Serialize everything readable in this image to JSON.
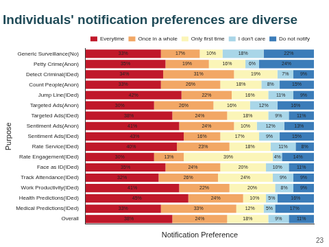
{
  "page_number": "23",
  "chart_data": {
    "type": "bar",
    "title": "Individuals' notification preferences are diverse",
    "orientation": "horizontal",
    "stacked": true,
    "grid": false,
    "legend": "top",
    "data_labels": true,
    "tick_labels": "y",
    "x_label": "Notification Preference",
    "y_label": "Purpose",
    "xlim": [
      0,
      100
    ],
    "categories": [
      "Generic Surveillance(No)",
      "Petty Crime(Anon)",
      "Detect Criminal(IDed)",
      "Count People(Anon)",
      "Jump Line(IDed)",
      "Targeted Ads(Anon)",
      "Targeted Ads(IDed)",
      "Sentiment Ads(Anon)",
      "Sentiment Ads(IDed)",
      "Rate Service(IDed)",
      "Rate Engagement(IDed)",
      "Face as ID(IDed)",
      "Track Attendance(IDed)",
      "Work Productivity(IDed)",
      "Health Predictions(IDed)",
      "Medical Predictions(IDed)",
      "Overall"
    ],
    "series": [
      {
        "name": "Everytime",
        "color": "#c0182a",
        "values": [
          33,
          35,
          34,
          33,
          42,
          30,
          38,
          41,
          43,
          40,
          30,
          35,
          32,
          41,
          45,
          33,
          38
        ],
        "value_labels": [
          "33%",
          "35%",
          "34%",
          "33%",
          "42%",
          "30%",
          "38%",
          "41%",
          "43%",
          "40%",
          "30%",
          "35%",
          "32%",
          "41%",
          "45%",
          "33%",
          "38%"
        ]
      },
      {
        "name": "Once in a whole",
        "color": "#f2a765",
        "values": [
          17,
          19,
          31,
          26,
          22,
          26,
          24,
          24,
          16,
          23,
          13,
          24,
          26,
          22,
          24,
          33,
          24
        ],
        "value_labels": [
          "17%",
          "19%",
          "31%",
          "26%",
          "22%",
          "26%",
          "24%",
          "24%",
          "16%",
          "23%",
          "13%",
          "24%",
          "26%",
          "22%",
          "24%",
          "33%",
          "24%"
        ]
      },
      {
        "name": "Only first time",
        "color": "#fbf5b8",
        "values": [
          10,
          16,
          19,
          18,
          16,
          16,
          18,
          10,
          17,
          18,
          39,
          20,
          24,
          20,
          10,
          12,
          18
        ],
        "value_labels": [
          "10%",
          "16%",
          "19%",
          "18%",
          "16%",
          "16%",
          "18%",
          "10%",
          "17%",
          "18%",
          "39%",
          "20%",
          "24%",
          "20%",
          "10%",
          "12%",
          "18%"
        ]
      },
      {
        "name": "I don't care",
        "color": "#a9d6e8",
        "values": [
          18,
          6,
          7,
          8,
          11,
          12,
          9,
          12,
          9,
          11,
          4,
          10,
          9,
          8,
          5,
          5,
          9
        ],
        "value_labels": [
          "18%",
          "6%",
          "7%",
          "8%",
          "11%",
          "12%",
          "9%",
          "12%",
          "9%",
          "11%",
          "4%",
          "10%",
          "9%",
          "8%",
          "5%",
          "5%",
          "9%"
        ]
      },
      {
        "name": "Do not notify",
        "color": "#3b7cb9",
        "values": [
          22,
          24,
          9,
          15,
          9,
          16,
          11,
          13,
          15,
          8,
          14,
          11,
          9,
          9,
          16,
          17,
          11
        ],
        "value_labels": [
          "22%",
          "24%",
          "9%",
          "15%",
          "9%",
          "16%",
          "11%",
          "13%",
          "15%",
          "8%",
          "14%",
          "11%",
          "9%",
          "9%",
          "16%",
          "17%",
          "11%"
        ]
      }
    ]
  }
}
